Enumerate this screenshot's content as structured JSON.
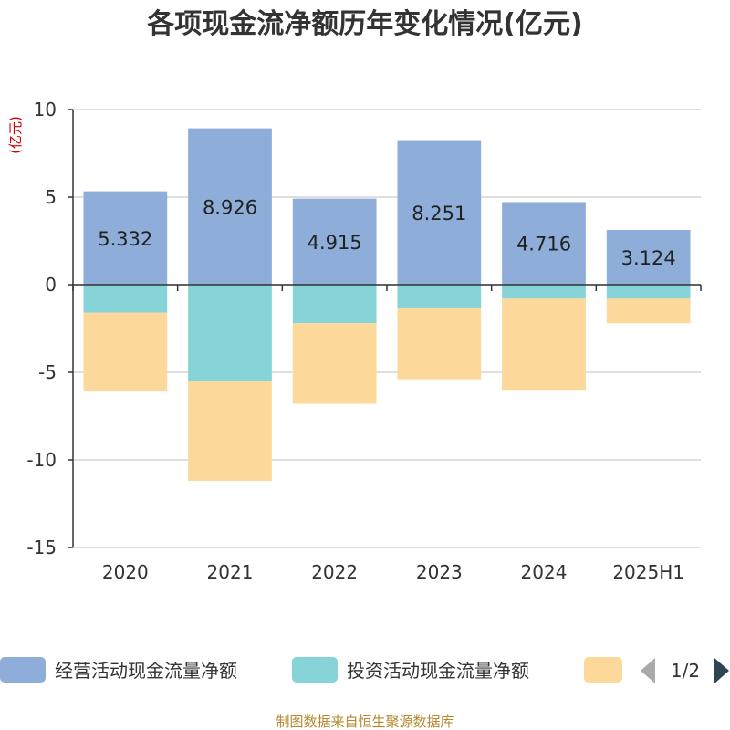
{
  "chart_data": {
    "type": "bar",
    "stacked": true,
    "title": "各项现金流净额历年变化情况(亿元)",
    "unit": "(亿元)",
    "categories": [
      "2020",
      "2021",
      "2022",
      "2023",
      "2024",
      "2025H1"
    ],
    "series": [
      {
        "name": "经营活动现金流量净额",
        "values": [
          5.332,
          8.926,
          4.915,
          8.251,
          4.716,
          3.124
        ],
        "color": "#8eadd9",
        "labeled": true
      },
      {
        "name": "投资活动现金流量净额",
        "values": [
          -1.6,
          -5.5,
          -2.2,
          -1.3,
          -0.8,
          -0.8
        ],
        "color": "#86d4d8",
        "labeled": false
      },
      {
        "values": [
          -4.5,
          -5.7,
          -4.6,
          -4.1,
          -5.2,
          -1.4
        ],
        "color": "#fdd89b",
        "labeled": false
      }
    ],
    "ylim": [
      -15,
      10
    ],
    "yticks": [
      10,
      5,
      0,
      -5,
      -10,
      -15
    ],
    "grid": true,
    "legend_position": "bottom",
    "legend_page": "1/2"
  },
  "source": "制图数据来自恒生聚源数据库",
  "colors": {
    "axis": "#333333",
    "grid": "#cccccc",
    "pager_active": "#2f4554",
    "pager_inactive": "#aaaaaa"
  }
}
